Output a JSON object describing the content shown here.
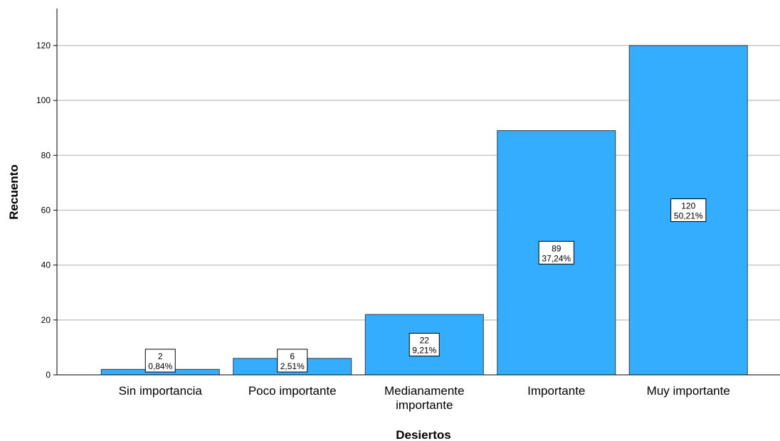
{
  "chart_data": {
    "type": "bar",
    "title": "",
    "xlabel": "Desiertos",
    "ylabel": "Recuento",
    "categories": [
      [
        "Sin importancia"
      ],
      [
        "Poco importante"
      ],
      [
        "Medianamente",
        "importante"
      ],
      [
        "Importante"
      ],
      [
        "Muy importante"
      ]
    ],
    "values": [
      2,
      6,
      22,
      89,
      120
    ],
    "percentages": [
      "0,84%",
      "2,51%",
      "9,21%",
      "37,24%",
      "50,21%"
    ],
    "ylim": [
      0,
      132
    ],
    "yticks": [
      0,
      20,
      40,
      60,
      80,
      100,
      120
    ],
    "grid": true,
    "legend": "none",
    "bar_color": "#33adff",
    "bar_edge_color": "#3a3a3a"
  }
}
